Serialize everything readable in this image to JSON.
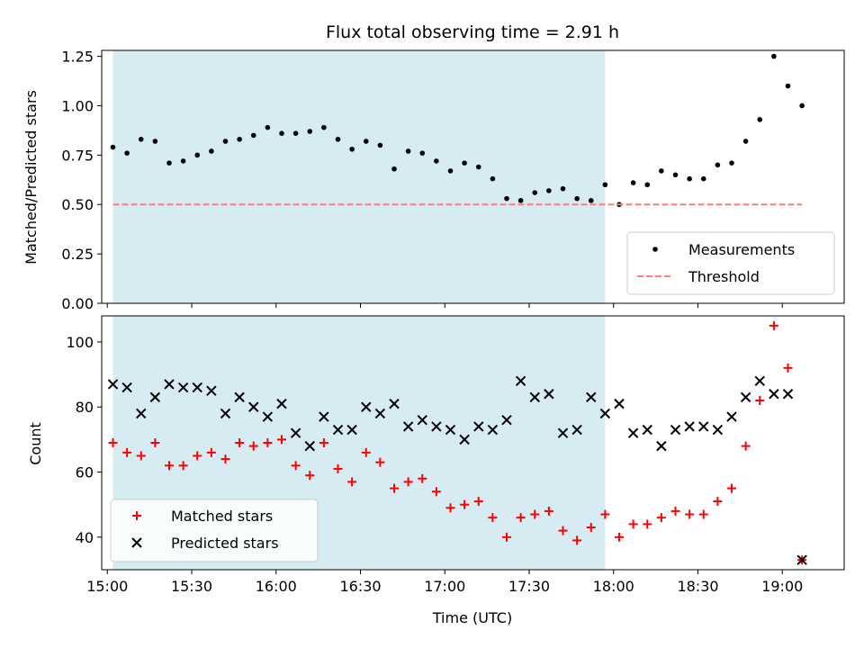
{
  "chart_data": [
    {
      "type": "scatter",
      "title": "Flux total observing time = 2.91 h",
      "xlabel": "",
      "ylabel": "Matched/Predicted stars",
      "ylim": [
        0,
        1.28
      ],
      "x_is_time": true,
      "xlim": [
        "14:58",
        "19:22"
      ],
      "yticks": [
        "0.00",
        "0.25",
        "0.50",
        "0.75",
        "1.00",
        "1.25"
      ],
      "shaded_span": [
        "15:02",
        "17:57"
      ],
      "legend_position": "lower-right",
      "series": [
        {
          "name": "Measurements",
          "marker": "dot",
          "color": "#000000",
          "x": [
            "15:02",
            "15:07",
            "15:12",
            "15:17",
            "15:22",
            "15:27",
            "15:32",
            "15:37",
            "15:42",
            "15:47",
            "15:52",
            "15:57",
            "16:02",
            "16:07",
            "16:12",
            "16:17",
            "16:22",
            "16:27",
            "16:32",
            "16:37",
            "16:42",
            "16:47",
            "16:52",
            "16:57",
            "17:02",
            "17:07",
            "17:12",
            "17:17",
            "17:22",
            "17:27",
            "17:32",
            "17:37",
            "17:42",
            "17:47",
            "17:52",
            "17:57",
            "18:02",
            "18:07",
            "18:12",
            "18:17",
            "18:22",
            "18:27",
            "18:32",
            "18:37",
            "18:42",
            "18:47",
            "18:52",
            "18:57",
            "19:02",
            "19:07"
          ],
          "y": [
            0.79,
            0.76,
            0.83,
            0.82,
            0.71,
            0.72,
            0.75,
            0.77,
            0.82,
            0.83,
            0.85,
            0.89,
            0.86,
            0.86,
            0.87,
            0.89,
            0.83,
            0.78,
            0.82,
            0.8,
            0.68,
            0.77,
            0.76,
            0.72,
            0.67,
            0.71,
            0.69,
            0.63,
            0.53,
            0.52,
            0.56,
            0.57,
            0.58,
            0.53,
            0.52,
            0.6,
            0.5,
            0.61,
            0.6,
            0.67,
            0.65,
            0.63,
            0.63,
            0.7,
            0.71,
            0.82,
            0.93,
            1.25,
            1.1,
            1.0
          ]
        },
        {
          "name": "Threshold",
          "marker": "dashed-line",
          "color": "#ff7f7f",
          "x": [
            "15:02",
            "19:07"
          ],
          "y": [
            0.5,
            0.5
          ]
        }
      ]
    },
    {
      "type": "scatter",
      "title": "",
      "xlabel": "Time (UTC)",
      "ylabel": "Count",
      "ylim": [
        30,
        108
      ],
      "x_is_time": true,
      "xlim": [
        "14:58",
        "19:22"
      ],
      "xticks": [
        "15:00",
        "15:30",
        "16:00",
        "16:30",
        "17:00",
        "17:30",
        "18:00",
        "18:30",
        "19:00"
      ],
      "yticks": [
        "40",
        "60",
        "80",
        "100"
      ],
      "shaded_span": [
        "15:02",
        "17:57"
      ],
      "legend_position": "lower-left",
      "series": [
        {
          "name": "Matched stars",
          "marker": "plus",
          "color": "#ff0000",
          "x": [
            "15:02",
            "15:07",
            "15:12",
            "15:17",
            "15:22",
            "15:27",
            "15:32",
            "15:37",
            "15:42",
            "15:47",
            "15:52",
            "15:57",
            "16:02",
            "16:07",
            "16:12",
            "16:17",
            "16:22",
            "16:27",
            "16:32",
            "16:37",
            "16:42",
            "16:47",
            "16:52",
            "16:57",
            "17:02",
            "17:07",
            "17:12",
            "17:17",
            "17:22",
            "17:27",
            "17:32",
            "17:37",
            "17:42",
            "17:47",
            "17:52",
            "17:57",
            "18:02",
            "18:07",
            "18:12",
            "18:17",
            "18:22",
            "18:27",
            "18:32",
            "18:37",
            "18:42",
            "18:47",
            "18:52",
            "18:57",
            "19:02",
            "19:07"
          ],
          "y": [
            69,
            66,
            65,
            69,
            62,
            62,
            65,
            66,
            64,
            69,
            68,
            69,
            70,
            62,
            59,
            69,
            61,
            57,
            66,
            63,
            55,
            57,
            58,
            54,
            49,
            50,
            51,
            46,
            40,
            46,
            47,
            48,
            42,
            39,
            43,
            47,
            40,
            44,
            44,
            46,
            48,
            47,
            47,
            51,
            55,
            68,
            82,
            105,
            92,
            33
          ]
        },
        {
          "name": "Predicted stars",
          "marker": "x",
          "color": "#000000",
          "x": [
            "15:02",
            "15:07",
            "15:12",
            "15:17",
            "15:22",
            "15:27",
            "15:32",
            "15:37",
            "15:42",
            "15:47",
            "15:52",
            "15:57",
            "16:02",
            "16:07",
            "16:12",
            "16:17",
            "16:22",
            "16:27",
            "16:32",
            "16:37",
            "16:42",
            "16:47",
            "16:52",
            "16:57",
            "17:02",
            "17:07",
            "17:12",
            "17:17",
            "17:22",
            "17:27",
            "17:32",
            "17:37",
            "17:42",
            "17:47",
            "17:52",
            "17:57",
            "18:02",
            "18:07",
            "18:12",
            "18:17",
            "18:22",
            "18:27",
            "18:32",
            "18:37",
            "18:42",
            "18:47",
            "18:52",
            "18:57",
            "19:02",
            "19:07"
          ],
          "y": [
            87,
            86,
            78,
            83,
            87,
            86,
            86,
            85,
            78,
            83,
            80,
            77,
            81,
            72,
            68,
            77,
            73,
            73,
            80,
            78,
            81,
            74,
            76,
            74,
            73,
            70,
            74,
            73,
            76,
            88,
            83,
            84,
            72,
            73,
            83,
            78,
            81,
            72,
            73,
            68,
            73,
            74,
            74,
            73,
            77,
            83,
            88,
            84,
            84,
            33
          ]
        }
      ]
    }
  ]
}
